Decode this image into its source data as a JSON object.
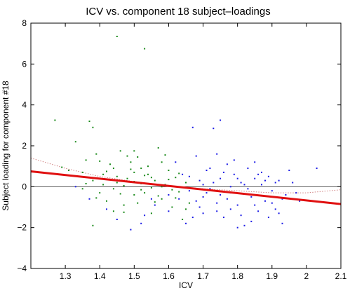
{
  "chart_data": {
    "type": "scatter",
    "title": "ICV vs. component 18 subject–loadings",
    "xlabel": "ICV",
    "ylabel": "Subject loading for component #18",
    "xlim": [
      1.2,
      2.1
    ],
    "ylim": [
      -4,
      8
    ],
    "xticks": [
      1.3,
      1.4,
      1.5,
      1.6,
      1.7,
      1.8,
      1.9,
      2.0,
      2.1
    ],
    "xtick_labels": [
      "1.3",
      "1.4",
      "1.5",
      "1.6",
      "1.7",
      "1.8",
      "1.9",
      "2",
      "2.1"
    ],
    "yticks": [
      -4,
      -2,
      0,
      2,
      4,
      6,
      8
    ],
    "ytick_labels": [
      "−4",
      "−2",
      "0",
      "2",
      "4",
      "6",
      "8"
    ],
    "grid": false,
    "legend": "none",
    "zero_line": true,
    "series": [
      {
        "color": "#1a8a1a",
        "points": [
          [
            1.27,
            3.25
          ],
          [
            1.29,
            0.95
          ],
          [
            1.31,
            0.8
          ],
          [
            1.33,
            2.2
          ],
          [
            1.34,
            0.5
          ],
          [
            1.35,
            -0.1
          ],
          [
            1.36,
            1.3
          ],
          [
            1.37,
            3.2
          ],
          [
            1.38,
            2.9
          ],
          [
            1.38,
            -1.9
          ],
          [
            1.39,
            1.6
          ],
          [
            1.4,
            -0.3
          ],
          [
            1.41,
            0.6
          ],
          [
            1.42,
            -0.7
          ],
          [
            1.43,
            1.1
          ],
          [
            1.44,
            -1.2
          ],
          [
            1.45,
            7.35
          ],
          [
            1.45,
            0.2
          ],
          [
            1.46,
            1.75
          ],
          [
            1.47,
            -0.9
          ],
          [
            1.48,
            0.4
          ],
          [
            1.49,
            1.2
          ],
          [
            1.5,
            -0.4
          ],
          [
            1.5,
            0.7
          ],
          [
            1.51,
            1.45
          ],
          [
            1.52,
            -0.15
          ],
          [
            1.53,
            6.75
          ],
          [
            1.53,
            0.55
          ],
          [
            1.54,
            1.0
          ],
          [
            1.55,
            -1.3
          ],
          [
            1.56,
            0.3
          ],
          [
            1.57,
            1.9
          ],
          [
            1.58,
            -0.6
          ],
          [
            1.59,
            0.1
          ],
          [
            1.6,
            0.8
          ],
          [
            1.61,
            -1.0
          ],
          [
            1.62,
            0.45
          ],
          [
            1.63,
            -0.25
          ],
          [
            1.64,
            -1.6
          ],
          [
            1.65,
            0.2
          ],
          [
            1.66,
            -0.8
          ],
          [
            1.47,
            0.05
          ],
          [
            1.43,
            0.35
          ],
          [
            1.39,
            -0.55
          ],
          [
            1.36,
            0.15
          ],
          [
            1.52,
            0.9
          ],
          [
            1.58,
            1.2
          ],
          [
            1.55,
            -0.05
          ],
          [
            1.46,
            -0.35
          ],
          [
            1.42,
            0.75
          ],
          [
            1.5,
            0.25
          ],
          [
            1.57,
            -0.45
          ],
          [
            1.54,
            0.6
          ],
          [
            1.48,
            1.5
          ],
          [
            1.44,
            -0.1
          ],
          [
            1.6,
            0.35
          ],
          [
            1.62,
            -0.55
          ],
          [
            1.51,
            -0.8
          ],
          [
            1.41,
            0.1
          ],
          [
            1.35,
            0.7
          ],
          [
            1.53,
            -0.3
          ],
          [
            1.49,
            0.85
          ],
          [
            1.56,
            -0.75
          ],
          [
            1.59,
            1.55
          ],
          [
            1.45,
            0.5
          ],
          [
            1.4,
            1.25
          ],
          [
            1.63,
            0.65
          ],
          [
            1.47,
            -1.25
          ],
          [
            1.52,
            0.15
          ],
          [
            1.58,
            0.0
          ],
          [
            1.65,
            -1.1
          ],
          [
            1.5,
            1.75
          ],
          [
            1.44,
            0.9
          ],
          [
            1.38,
            0.3
          ],
          [
            1.55,
            0.45
          ],
          [
            1.61,
            -0.15
          ]
        ]
      },
      {
        "color": "#1a1ae6",
        "points": [
          [
            1.33,
            0.0
          ],
          [
            1.37,
            -0.6
          ],
          [
            1.42,
            -1.1
          ],
          [
            1.45,
            -1.6
          ],
          [
            1.49,
            -2.1
          ],
          [
            1.53,
            -1.4
          ],
          [
            1.56,
            -0.9
          ],
          [
            1.6,
            -0.4
          ],
          [
            1.62,
            1.2
          ],
          [
            1.64,
            0.6
          ],
          [
            1.66,
            -0.2
          ],
          [
            1.67,
            2.9
          ],
          [
            1.68,
            -0.7
          ],
          [
            1.69,
            0.3
          ],
          [
            1.7,
            -1.3
          ],
          [
            1.71,
            0.8
          ],
          [
            1.72,
            -0.1
          ],
          [
            1.73,
            2.85
          ],
          [
            1.74,
            -0.8
          ],
          [
            1.75,
            3.25
          ],
          [
            1.75,
            0.4
          ],
          [
            1.76,
            -1.5
          ],
          [
            1.77,
            1.1
          ],
          [
            1.78,
            -0.3
          ],
          [
            1.79,
            0.6
          ],
          [
            1.8,
            -0.9
          ],
          [
            1.81,
            0.2
          ],
          [
            1.82,
            -1.9
          ],
          [
            1.83,
            0.9
          ],
          [
            1.84,
            -0.5
          ],
          [
            1.85,
            0.4
          ],
          [
            1.86,
            -1.2
          ],
          [
            1.87,
            0.1
          ],
          [
            1.88,
            -0.7
          ],
          [
            1.89,
            0.5
          ],
          [
            1.9,
            -0.2
          ],
          [
            1.91,
            -1.1
          ],
          [
            1.92,
            0.3
          ],
          [
            1.93,
            -0.6
          ],
          [
            1.95,
            0.8
          ],
          [
            1.97,
            -0.3
          ],
          [
            2.03,
            0.9
          ],
          [
            1.65,
            -1.8
          ],
          [
            1.68,
            1.5
          ],
          [
            1.7,
            -0.5
          ],
          [
            1.72,
            0.9
          ],
          [
            1.74,
            -1.2
          ],
          [
            1.77,
            -0.6
          ],
          [
            1.79,
            1.3
          ],
          [
            1.81,
            -1.4
          ],
          [
            1.83,
            -0.1
          ],
          [
            1.85,
            -0.9
          ],
          [
            1.87,
            0.7
          ],
          [
            1.89,
            -1.5
          ],
          [
            1.91,
            0.2
          ],
          [
            1.66,
            0.5
          ],
          [
            1.69,
            -1.0
          ],
          [
            1.71,
            -0.3
          ],
          [
            1.73,
            0.2
          ],
          [
            1.76,
            0.7
          ],
          [
            1.78,
            -1.1
          ],
          [
            1.8,
            0.4
          ],
          [
            1.82,
            0.1
          ],
          [
            1.84,
            -1.7
          ],
          [
            1.86,
            0.6
          ],
          [
            1.88,
            0.3
          ],
          [
            1.9,
            -0.8
          ],
          [
            1.92,
            -1.3
          ],
          [
            1.94,
            -0.4
          ],
          [
            1.96,
            0.2
          ],
          [
            1.63,
            -0.6
          ],
          [
            1.67,
            -1.5
          ],
          [
            1.75,
            -0.4
          ],
          [
            1.8,
            -2.0
          ],
          [
            1.85,
            1.2
          ],
          [
            1.7,
            0.1
          ],
          [
            1.6,
            -1.2
          ],
          [
            1.55,
            -0.6
          ],
          [
            1.52,
            -1.8
          ],
          [
            1.98,
            -0.7
          ],
          [
            1.93,
            -1.8
          ],
          [
            1.78,
            0.0
          ],
          [
            1.74,
            1.6
          ]
        ]
      }
    ],
    "fit_line": {
      "color": "#e01010",
      "x": [
        1.2,
        2.1
      ],
      "y": [
        0.75,
        -0.85
      ]
    },
    "smooth_curve": {
      "color": "#d08080",
      "x": [
        1.2,
        1.3,
        1.4,
        1.5,
        1.6,
        1.7,
        1.8,
        1.9,
        2.0,
        2.1
      ],
      "y": [
        1.4,
        0.9,
        0.5,
        0.25,
        0.05,
        -0.1,
        -0.2,
        -0.3,
        -0.3,
        -0.15
      ]
    }
  }
}
